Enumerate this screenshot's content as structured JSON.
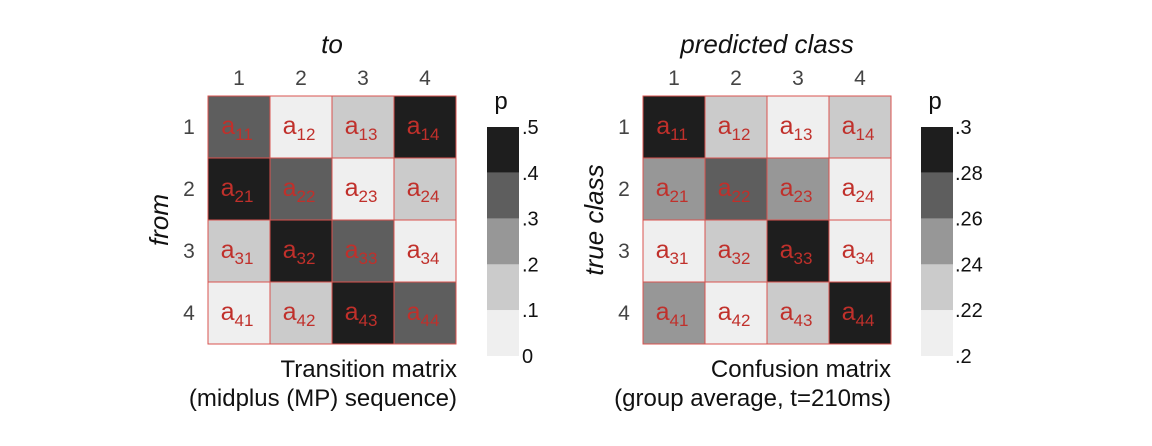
{
  "chart_data": [
    {
      "type": "heatmap",
      "col_axis_title": "to",
      "row_axis_title": "from",
      "col_ticks": [
        "1",
        "2",
        "3",
        "4"
      ],
      "row_ticks": [
        "1",
        "2",
        "3",
        "4"
      ],
      "cell_labels": [
        [
          {
            "base": "a",
            "sub": "11"
          },
          {
            "base": "a",
            "sub": "12"
          },
          {
            "base": "a",
            "sub": "13"
          },
          {
            "base": "a",
            "sub": "14"
          }
        ],
        [
          {
            "base": "a",
            "sub": "21"
          },
          {
            "base": "a",
            "sub": "22"
          },
          {
            "base": "a",
            "sub": "23"
          },
          {
            "base": "a",
            "sub": "24"
          }
        ],
        [
          {
            "base": "a",
            "sub": "31"
          },
          {
            "base": "a",
            "sub": "32"
          },
          {
            "base": "a",
            "sub": "33"
          },
          {
            "base": "a",
            "sub": "34"
          }
        ],
        [
          {
            "base": "a",
            "sub": "41"
          },
          {
            "base": "a",
            "sub": "42"
          },
          {
            "base": "a",
            "sub": "43"
          },
          {
            "base": "a",
            "sub": "44"
          }
        ]
      ],
      "values": [
        [
          0.35,
          0.05,
          0.15,
          0.45
        ],
        [
          0.45,
          0.35,
          0.05,
          0.15
        ],
        [
          0.15,
          0.45,
          0.35,
          0.05
        ],
        [
          0.05,
          0.15,
          0.45,
          0.35
        ]
      ],
      "colorbar": {
        "title": "p",
        "min": 0,
        "max": 0.5,
        "ticks": [
          ".5",
          ".4",
          ".3",
          ".2",
          ".1",
          "0"
        ],
        "levels": [
          "#1e1e1e",
          "#5e5e5e",
          "#979797",
          "#cbcbcb",
          "#efefef"
        ]
      },
      "caption": [
        "Transition matrix",
        "(midplus (MP) sequence)"
      ]
    },
    {
      "type": "heatmap",
      "col_axis_title": "predicted class",
      "row_axis_title": "true class",
      "col_ticks": [
        "1",
        "2",
        "3",
        "4"
      ],
      "row_ticks": [
        "1",
        "2",
        "3",
        "4"
      ],
      "cell_labels": [
        [
          {
            "base": "a",
            "sub": "11"
          },
          {
            "base": "a",
            "sub": "12"
          },
          {
            "base": "a",
            "sub": "13"
          },
          {
            "base": "a",
            "sub": "14"
          }
        ],
        [
          {
            "base": "a",
            "sub": "21"
          },
          {
            "base": "a",
            "sub": "22"
          },
          {
            "base": "a",
            "sub": "23"
          },
          {
            "base": "a",
            "sub": "24"
          }
        ],
        [
          {
            "base": "a",
            "sub": "31"
          },
          {
            "base": "a",
            "sub": "32"
          },
          {
            "base": "a",
            "sub": "33"
          },
          {
            "base": "a",
            "sub": "34"
          }
        ],
        [
          {
            "base": "a",
            "sub": "41"
          },
          {
            "base": "a",
            "sub": "42"
          },
          {
            "base": "a",
            "sub": "43"
          },
          {
            "base": "a",
            "sub": "44"
          }
        ]
      ],
      "values": [
        [
          0.29,
          0.23,
          0.21,
          0.23
        ],
        [
          0.25,
          0.27,
          0.25,
          0.21
        ],
        [
          0.21,
          0.23,
          0.29,
          0.21
        ],
        [
          0.25,
          0.21,
          0.23,
          0.29
        ]
      ],
      "colorbar": {
        "title": "p",
        "min": 0.2,
        "max": 0.3,
        "ticks": [
          ".3",
          ".28",
          ".26",
          ".24",
          ".22",
          ".2"
        ],
        "levels": [
          "#1e1e1e",
          "#5e5e5e",
          "#979797",
          "#cbcbcb",
          "#efefef"
        ]
      },
      "caption": [
        "Confusion matrix",
        "(group average, t=210ms)"
      ]
    }
  ]
}
